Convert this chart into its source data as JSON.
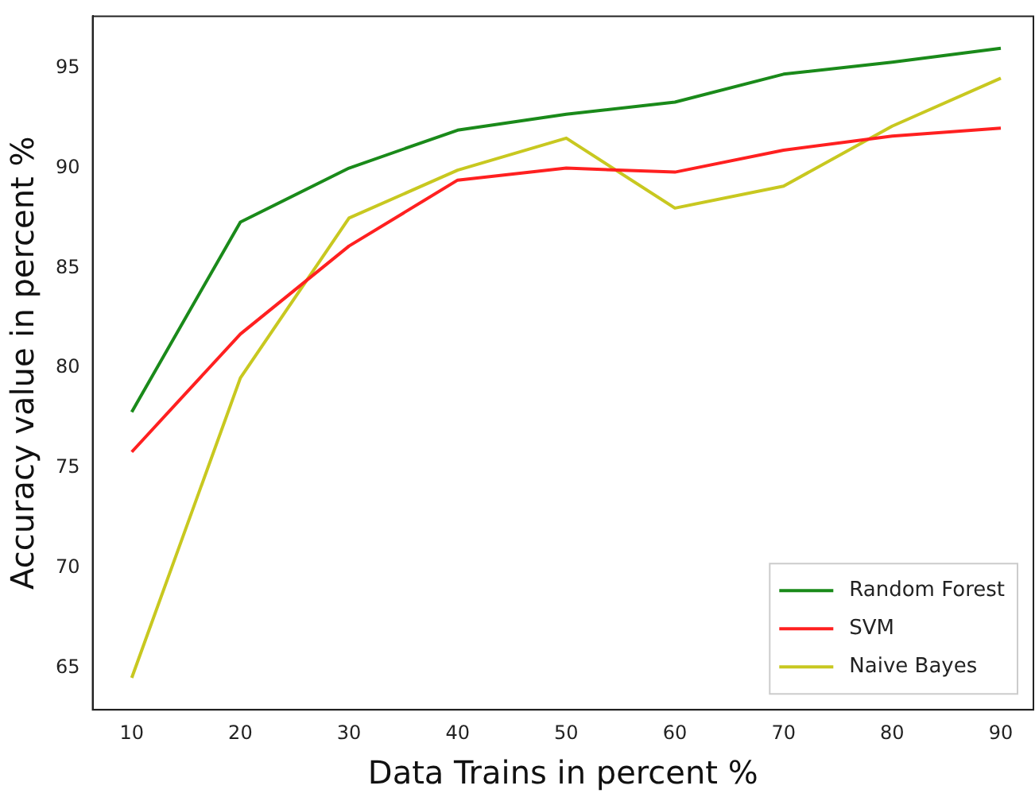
{
  "chart_data": {
    "type": "line",
    "xlabel": "Data Trains in percent %",
    "ylabel": "Accuracy value in percent %",
    "x": [
      10,
      20,
      30,
      40,
      50,
      60,
      70,
      80,
      90
    ],
    "series": [
      {
        "name": "Random Forest",
        "color": "#1a8a1a",
        "values": [
          77.8,
          87.3,
          90.0,
          91.9,
          92.7,
          93.3,
          94.7,
          95.3,
          96.0
        ]
      },
      {
        "name": "SVM",
        "color": "#ff2020",
        "values": [
          75.8,
          81.7,
          86.1,
          89.4,
          90.0,
          89.8,
          90.9,
          91.6,
          92.0
        ]
      },
      {
        "name": "Naive Bayes",
        "color": "#c8c820",
        "values": [
          64.5,
          79.5,
          87.5,
          89.9,
          91.5,
          88.0,
          89.1,
          92.1,
          94.5
        ]
      }
    ],
    "xlim": [
      6.4,
      93
    ],
    "xticks": [
      10,
      20,
      30,
      40,
      50,
      60,
      70,
      80,
      90
    ],
    "ylim": [
      62.9,
      97.6
    ],
    "yticks": [
      65,
      70,
      75,
      80,
      85,
      90,
      95
    ],
    "grid": false,
    "legend": "bottom right",
    "marker": "none",
    "line_style": "solid"
  }
}
